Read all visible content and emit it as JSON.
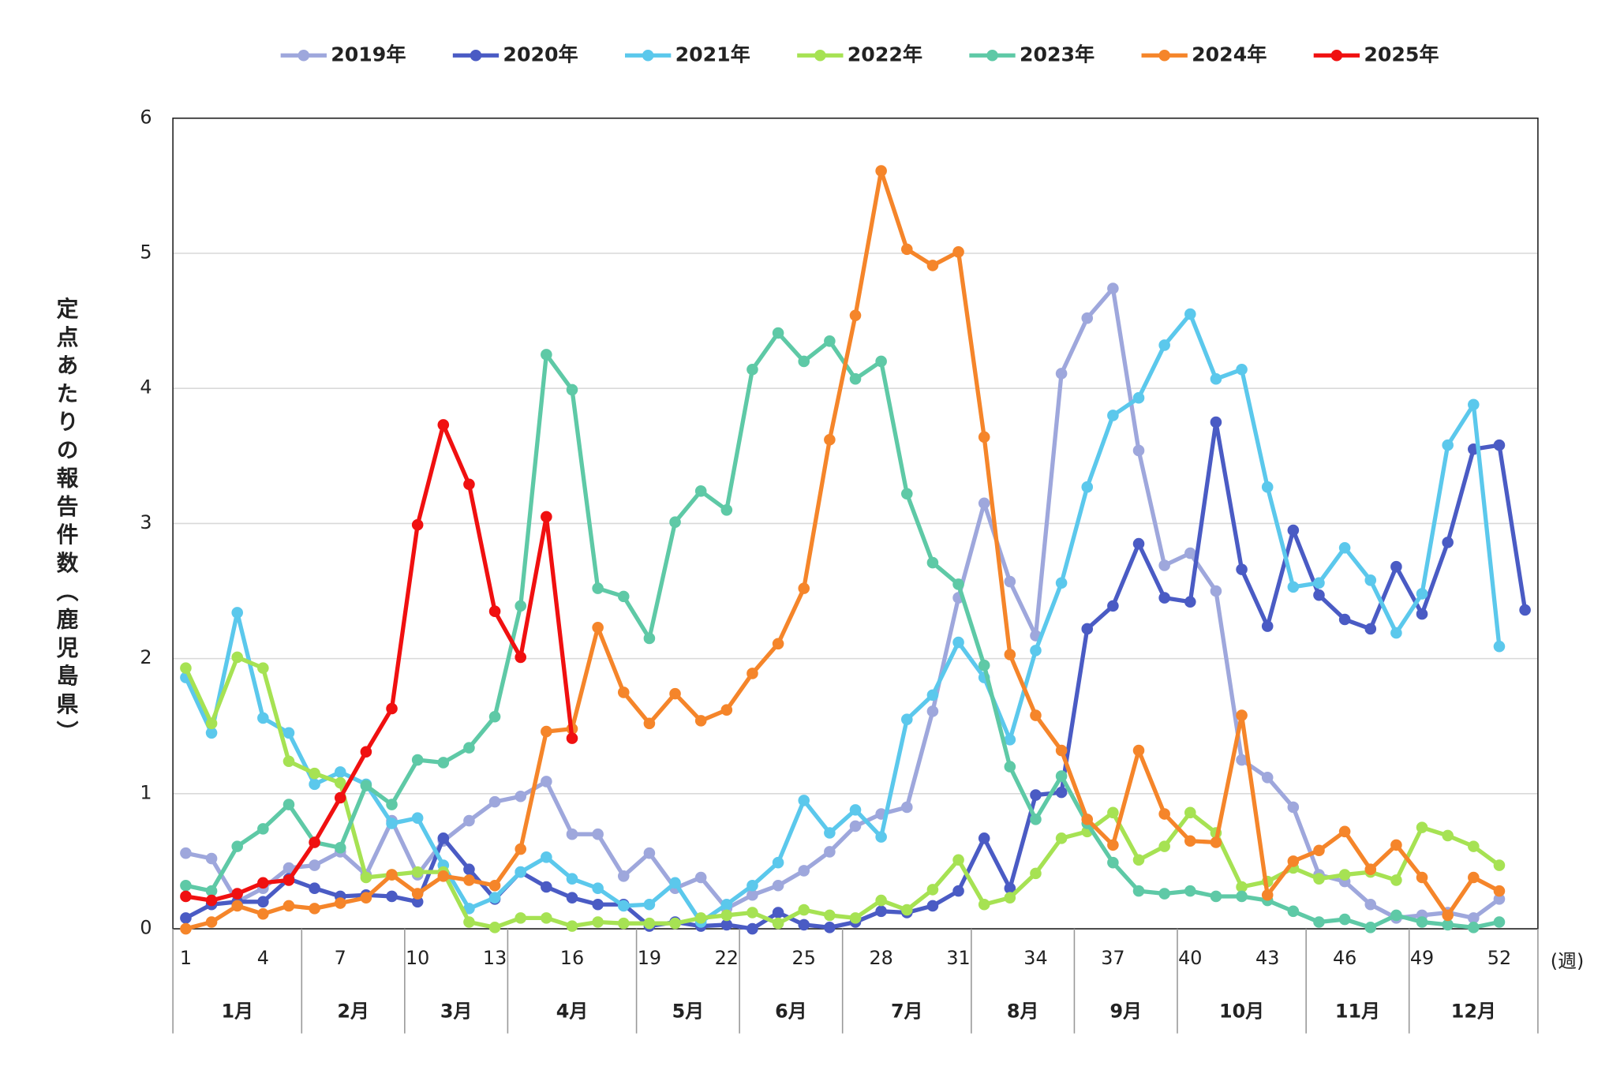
{
  "chart_data": {
    "type": "line",
    "y_label": "定点あたりの報告件数（鹿児島県）",
    "x_label": "(週)",
    "x": [
      1,
      2,
      3,
      4,
      5,
      6,
      7,
      8,
      9,
      10,
      11,
      12,
      13,
      14,
      15,
      16,
      17,
      18,
      19,
      20,
      21,
      22,
      23,
      24,
      25,
      26,
      27,
      28,
      29,
      30,
      31,
      32,
      33,
      34,
      35,
      36,
      37,
      38,
      39,
      40,
      41,
      42,
      43,
      44,
      45,
      46,
      47,
      48,
      49,
      50,
      51,
      52,
      53
    ],
    "xlim": [
      0.5,
      53.5
    ],
    "xticks": [
      1,
      4,
      7,
      10,
      13,
      16,
      19,
      22,
      25,
      28,
      31,
      34,
      37,
      40,
      43,
      46,
      49,
      52
    ],
    "ylim": [
      0,
      6
    ],
    "yticks": [
      0,
      1,
      2,
      3,
      4,
      5,
      6
    ],
    "grid": true,
    "legend": "top",
    "months": [
      {
        "label": "1月",
        "weeks": [
          1,
          5
        ]
      },
      {
        "label": "2月",
        "weeks": [
          6,
          9
        ]
      },
      {
        "label": "3月",
        "weeks": [
          10,
          13
        ]
      },
      {
        "label": "4月",
        "weeks": [
          14,
          18
        ]
      },
      {
        "label": "5月",
        "weeks": [
          19,
          22
        ]
      },
      {
        "label": "6月",
        "weeks": [
          23,
          26
        ]
      },
      {
        "label": "7月",
        "weeks": [
          27,
          31
        ]
      },
      {
        "label": "8月",
        "weeks": [
          32,
          35
        ]
      },
      {
        "label": "9月",
        "weeks": [
          36,
          39
        ]
      },
      {
        "label": "10月",
        "weeks": [
          40,
          44
        ]
      },
      {
        "label": "11月",
        "weeks": [
          45,
          48
        ]
      },
      {
        "label": "12月",
        "weeks": [
          49,
          53
        ]
      }
    ],
    "series": [
      {
        "name": "2019年",
        "color": "#9ea7dc",
        "values": [
          0.56,
          0.52,
          0.2,
          0.3,
          0.45,
          0.47,
          0.57,
          0.4,
          0.8,
          0.4,
          0.65,
          0.8,
          0.94,
          0.98,
          1.09,
          0.7,
          0.7,
          0.39,
          0.56,
          0.3,
          0.38,
          0.15,
          0.25,
          0.32,
          0.43,
          0.57,
          0.76,
          0.85,
          0.9,
          1.61,
          2.45,
          3.15,
          2.57,
          2.17,
          4.11,
          4.52,
          4.74,
          3.54,
          2.69,
          2.78,
          2.5,
          1.25,
          1.12,
          0.9,
          0.4,
          0.35,
          0.18,
          0.08,
          0.1,
          0.12,
          0.08,
          0.22,
          null
        ]
      },
      {
        "name": "2020年",
        "color": "#4a5bc4",
        "values": [
          0.08,
          0.18,
          0.2,
          0.2,
          0.37,
          0.3,
          0.24,
          0.25,
          0.24,
          0.2,
          0.67,
          0.44,
          0.22,
          0.42,
          0.31,
          0.23,
          0.18,
          0.18,
          0.02,
          0.05,
          0.02,
          0.03,
          0.0,
          0.12,
          0.03,
          0.01,
          0.05,
          0.13,
          0.12,
          0.17,
          0.28,
          0.67,
          0.3,
          0.99,
          1.01,
          2.22,
          2.39,
          2.85,
          2.45,
          2.42,
          3.75,
          2.66,
          2.24,
          2.95,
          2.47,
          2.29,
          2.22,
          2.68,
          2.33,
          2.86,
          3.55,
          3.58,
          2.36
        ]
      },
      {
        "name": "2021年",
        "color": "#5bc8ec",
        "values": [
          1.86,
          1.45,
          2.34,
          1.56,
          1.45,
          1.07,
          1.16,
          1.07,
          0.78,
          0.82,
          0.47,
          0.15,
          0.23,
          0.42,
          0.53,
          0.37,
          0.3,
          0.17,
          0.18,
          0.34,
          0.05,
          0.18,
          0.32,
          0.49,
          0.95,
          0.71,
          0.88,
          0.68,
          1.55,
          1.73,
          2.12,
          1.86,
          1.4,
          2.06,
          2.56,
          3.27,
          3.8,
          3.93,
          4.32,
          4.55,
          4.07,
          4.14,
          3.27,
          2.53,
          2.56,
          2.82,
          2.58,
          2.19,
          2.48,
          3.58,
          3.88,
          2.09,
          null
        ]
      },
      {
        "name": "2022年",
        "color": "#a6e253",
        "values": [
          1.93,
          1.52,
          2.01,
          1.93,
          1.24,
          1.15,
          1.08,
          0.38,
          0.4,
          0.42,
          0.42,
          0.05,
          0.01,
          0.08,
          0.08,
          0.02,
          0.05,
          0.04,
          0.04,
          0.04,
          0.08,
          0.1,
          0.12,
          0.04,
          0.14,
          0.1,
          0.08,
          0.21,
          0.14,
          0.29,
          0.51,
          0.18,
          0.23,
          0.41,
          0.67,
          0.72,
          0.86,
          0.51,
          0.61,
          0.86,
          0.71,
          0.31,
          0.35,
          0.45,
          0.37,
          0.4,
          0.42,
          0.36,
          0.75,
          0.69,
          0.61,
          0.47,
          null
        ]
      },
      {
        "name": "2023年",
        "color": "#5ec9a6",
        "values": [
          0.32,
          0.28,
          0.61,
          0.74,
          0.92,
          0.64,
          0.6,
          1.06,
          0.92,
          1.25,
          1.23,
          1.34,
          1.57,
          2.39,
          4.25,
          3.99,
          2.52,
          2.46,
          2.15,
          3.01,
          3.24,
          3.1,
          4.14,
          4.41,
          4.2,
          4.35,
          4.07,
          4.2,
          3.22,
          2.71,
          2.55,
          1.95,
          1.2,
          0.81,
          1.13,
          0.78,
          0.49,
          0.28,
          0.26,
          0.28,
          0.24,
          0.24,
          0.21,
          0.13,
          0.05,
          0.07,
          0.01,
          0.1,
          0.05,
          0.03,
          0.01,
          0.05,
          null
        ]
      },
      {
        "name": "2024年",
        "color": "#f5852a",
        "values": [
          0.0,
          0.05,
          0.17,
          0.11,
          0.17,
          0.15,
          0.19,
          0.23,
          0.4,
          0.26,
          0.39,
          0.36,
          0.32,
          0.59,
          1.46,
          1.48,
          2.23,
          1.75,
          1.52,
          1.74,
          1.54,
          1.62,
          1.89,
          2.11,
          2.52,
          3.62,
          4.54,
          5.61,
          5.03,
          4.91,
          5.01,
          3.64,
          2.03,
          1.58,
          1.32,
          0.81,
          0.62,
          1.32,
          0.85,
          0.65,
          0.64,
          1.58,
          0.25,
          0.5,
          0.58,
          0.72,
          0.44,
          0.62,
          0.38,
          0.1,
          0.38,
          0.28,
          null
        ]
      },
      {
        "name": "2025年",
        "color": "#f01010",
        "values": [
          0.24,
          0.21,
          0.26,
          0.34,
          0.36,
          0.64,
          0.97,
          1.31,
          1.63,
          2.99,
          3.73,
          3.29,
          2.35,
          2.01,
          3.05,
          1.41,
          null,
          null,
          null,
          null,
          null,
          null,
          null,
          null,
          null,
          null,
          null,
          null,
          null,
          null,
          null,
          null,
          null,
          null,
          null,
          null,
          null,
          null,
          null,
          null,
          null,
          null,
          null,
          null,
          null,
          null,
          null,
          null,
          null,
          null,
          null,
          null,
          null
        ]
      }
    ]
  }
}
